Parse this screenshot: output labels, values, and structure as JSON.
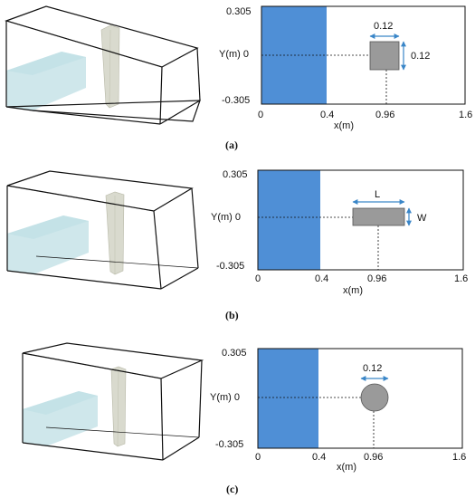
{
  "panels": [
    {
      "id": "a",
      "caption": "(a)",
      "axis": {
        "y_top": "0.305",
        "y_mid": "Y(m) 0",
        "y_bottom": "-0.305",
        "x0": "0",
        "x1": "0.4",
        "x2": "0.96",
        "x3": "1.6",
        "xlabel": "x(m)"
      },
      "obstacle": {
        "shape": "square",
        "dim_top": "0.12",
        "dim_side": "0.12"
      }
    },
    {
      "id": "b",
      "caption": "(b)",
      "axis": {
        "y_top": "0.305",
        "y_mid": "Y(m) 0",
        "y_bottom": "-0.305",
        "x0": "0",
        "x1": "0.4",
        "x2": "0.96",
        "x3": "1.6",
        "xlabel": "x(m)"
      },
      "obstacle": {
        "shape": "rectangle",
        "dim_top": "L",
        "dim_side": "W"
      }
    },
    {
      "id": "c",
      "caption": "(c)",
      "axis": {
        "y_top": "0.305",
        "y_mid": "Y(m) 0",
        "y_bottom": "-0.305",
        "x0": "0",
        "x1": "0.4",
        "x2": "0.96",
        "x3": "1.6",
        "xlabel": "x(m)"
      },
      "obstacle": {
        "shape": "circle",
        "dim_top": "0.12"
      }
    }
  ],
  "colors": {
    "water_plan": "#4f8fd6",
    "water_3d": "#c7e3e8",
    "obstacle_plan": "#9a9a9a",
    "obstacle_3d": "#d9dace",
    "arrow": "#3a86c8",
    "box_edge": "#111111"
  }
}
